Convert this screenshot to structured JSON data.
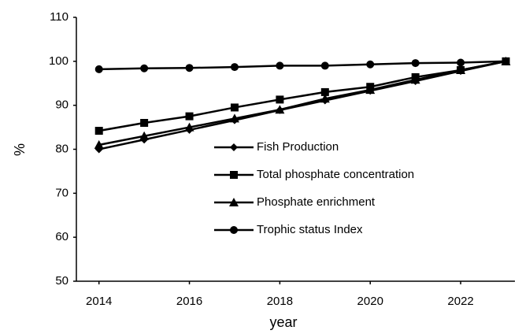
{
  "chart_data": {
    "type": "line",
    "x": [
      2014,
      2015,
      2016,
      2017,
      2018,
      2019,
      2020,
      2021,
      2022,
      2023
    ],
    "series": [
      {
        "name": "Fish Production",
        "color": "#000000",
        "marker": "diamond",
        "values": [
          80,
          82.2,
          84.4,
          86.6,
          88.9,
          91.1,
          93.3,
          95.5,
          97.8,
          100
        ]
      },
      {
        "name": "Total phosphate concentration",
        "color": "#000000",
        "marker": "square",
        "values": [
          84.2,
          86,
          87.5,
          89.5,
          91.3,
          93,
          94.2,
          96.4,
          98,
          100
        ]
      },
      {
        "name": "Phosphate enrichment",
        "color": "#000000",
        "marker": "triangle",
        "values": [
          81,
          83,
          85,
          87,
          89,
          91.5,
          93.5,
          95.8,
          98,
          100
        ]
      },
      {
        "name": "Trophic status Index",
        "color": "#000000",
        "marker": "circle",
        "values": [
          98.2,
          98.4,
          98.5,
          98.7,
          99,
          99,
          99.3,
          99.6,
          99.7,
          100
        ]
      }
    ],
    "xlabel": "year",
    "ylabel": "%",
    "xlim": [
      2013.5,
      2023.2
    ],
    "xticks": [
      2014,
      2016,
      2018,
      2020,
      2022
    ],
    "ylim": [
      50,
      110
    ],
    "yticks": [
      50,
      60,
      70,
      80,
      90,
      100,
      110
    ],
    "grid": false,
    "legend": "lower right"
  }
}
